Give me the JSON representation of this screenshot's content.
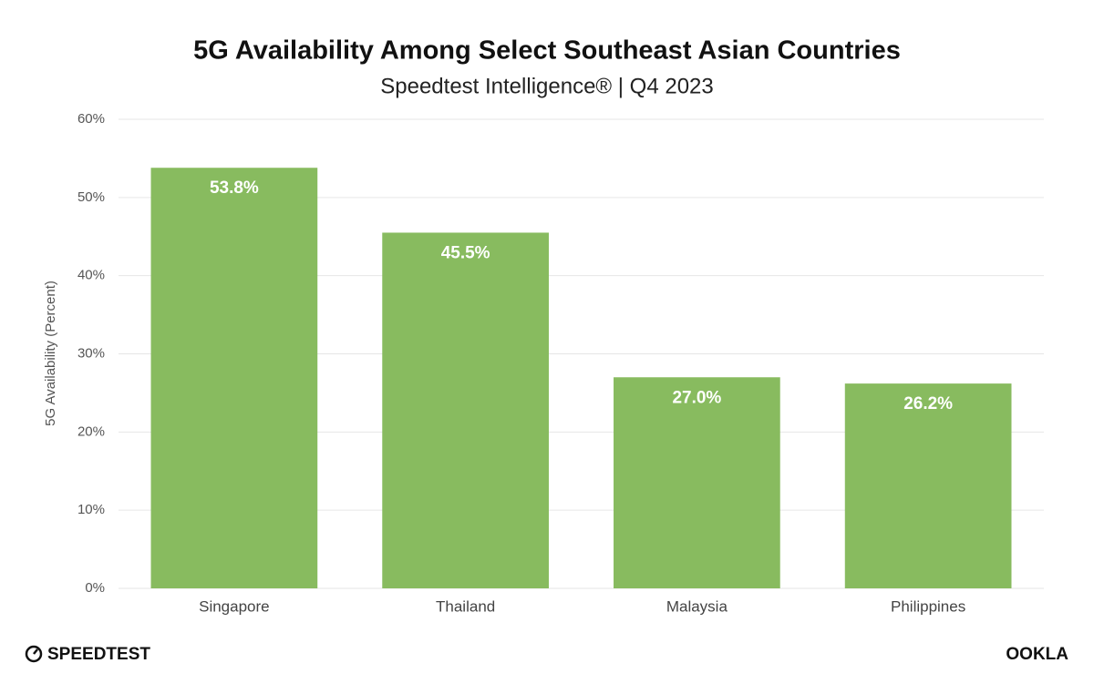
{
  "chart_data": {
    "type": "bar",
    "title": "5G Availability Among Select Southeast Asian Countries",
    "subtitle": "Speedtest Intelligence® | Q4 2023",
    "y_label": "5G Availability (Percent)",
    "categories": [
      "Singapore",
      "Thailand",
      "Malaysia",
      "Philippines"
    ],
    "values": [
      53.8,
      45.5,
      27.0,
      26.2
    ],
    "value_labels": [
      "53.8%",
      "45.5%",
      "27.0%",
      "26.2%"
    ],
    "color": "#88bb5f",
    "ylim": [
      0,
      60
    ],
    "yticks": [
      {
        "value": 0,
        "label": "0%"
      },
      {
        "value": 10,
        "label": "10%"
      },
      {
        "value": 20,
        "label": "20%"
      },
      {
        "value": 30,
        "label": "30%"
      },
      {
        "value": 40,
        "label": "40%"
      },
      {
        "value": 50,
        "label": "50%"
      },
      {
        "value": 60,
        "label": "60%"
      }
    ],
    "grid": true
  },
  "footer": {
    "left_logo": "SPEEDTEST",
    "right_logo": "OOKLA"
  }
}
